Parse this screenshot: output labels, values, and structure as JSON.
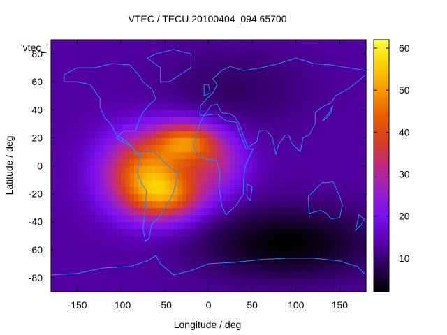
{
  "chart_data": {
    "type": "heatmap",
    "title": "VTEC / TECU 20100404_094.65700",
    "xlabel": "Longitude / deg",
    "ylabel": "Latitude / deg",
    "legend_key": "'vtec_'",
    "xlim": [
      -180,
      180
    ],
    "ylim": [
      -90,
      90
    ],
    "xticks": [
      -150,
      -100,
      -50,
      0,
      50,
      100,
      150
    ],
    "yticks": [
      -80,
      -60,
      -40,
      -20,
      0,
      20,
      40,
      60,
      80
    ],
    "colorbar": {
      "range": [
        2,
        62
      ],
      "ticks": [
        10,
        20,
        30,
        40,
        50,
        60
      ],
      "palette": [
        "#000000",
        "#2a0055",
        "#5a00b0",
        "#7a10f0",
        "#9a20c8",
        "#c02a80",
        "#d84020",
        "#e86000",
        "#f59a00",
        "#fbd000",
        "#ffff40"
      ]
    },
    "background_vtec": 13,
    "anomaly_components": [
      {
        "lon": -70,
        "lat": -5,
        "amp": 34,
        "sigma_lon": 35,
        "sigma_lat": 20
      },
      {
        "lon": -25,
        "lat": 18,
        "amp": 26,
        "sigma_lon": 25,
        "sigma_lat": 10
      },
      {
        "lon": -45,
        "lat": -22,
        "amp": 20,
        "sigma_lon": 30,
        "sigma_lat": 12
      },
      {
        "lon": 10,
        "lat": 2,
        "amp": 14,
        "sigma_lon": 25,
        "sigma_lat": 15
      },
      {
        "lon": 90,
        "lat": -55,
        "amp": -11,
        "sigma_lon": 70,
        "sigma_lat": 18
      },
      {
        "lon": 30,
        "lat": 55,
        "amp": -4,
        "sigma_lon": 60,
        "sigma_lat": 20
      }
    ],
    "coastlines": [
      {
        "name": "north-america",
        "points": [
          [
            -165,
            65
          ],
          [
            -150,
            70
          ],
          [
            -130,
            70
          ],
          [
            -110,
            73
          ],
          [
            -90,
            72
          ],
          [
            -80,
            65
          ],
          [
            -75,
            60
          ],
          [
            -65,
            55
          ],
          [
            -60,
            48
          ],
          [
            -67,
            44
          ],
          [
            -75,
            38
          ],
          [
            -81,
            30
          ],
          [
            -83,
            25
          ],
          [
            -97,
            25
          ],
          [
            -105,
            20
          ],
          [
            -95,
            16
          ],
          [
            -88,
            14
          ],
          [
            -83,
            9
          ],
          [
            -78,
            8
          ],
          [
            -85,
            12
          ],
          [
            -95,
            18
          ],
          [
            -105,
            22
          ],
          [
            -112,
            30
          ],
          [
            -118,
            34
          ],
          [
            -124,
            42
          ],
          [
            -124,
            48
          ],
          [
            -135,
            58
          ],
          [
            -150,
            60
          ],
          [
            -165,
            60
          ],
          [
            -165,
            65
          ]
        ]
      },
      {
        "name": "greenland",
        "points": [
          [
            -55,
            60
          ],
          [
            -45,
            60
          ],
          [
            -20,
            70
          ],
          [
            -20,
            80
          ],
          [
            -40,
            83
          ],
          [
            -60,
            80
          ],
          [
            -70,
            77
          ],
          [
            -55,
            70
          ],
          [
            -55,
            60
          ]
        ]
      },
      {
        "name": "south-america",
        "points": [
          [
            -78,
            8
          ],
          [
            -72,
            12
          ],
          [
            -62,
            10
          ],
          [
            -50,
            2
          ],
          [
            -35,
            -5
          ],
          [
            -38,
            -15
          ],
          [
            -42,
            -22
          ],
          [
            -48,
            -28
          ],
          [
            -58,
            -38
          ],
          [
            -65,
            -42
          ],
          [
            -68,
            -52
          ],
          [
            -72,
            -54
          ],
          [
            -75,
            -45
          ],
          [
            -72,
            -30
          ],
          [
            -71,
            -18
          ],
          [
            -77,
            -12
          ],
          [
            -81,
            -5
          ],
          [
            -80,
            0
          ],
          [
            -78,
            8
          ]
        ]
      },
      {
        "name": "europe-asia",
        "points": [
          [
            -10,
            36
          ],
          [
            -9,
            43
          ],
          [
            -2,
            48
          ],
          [
            5,
            52
          ],
          [
            10,
            58
          ],
          [
            5,
            62
          ],
          [
            15,
            68
          ],
          [
            25,
            71
          ],
          [
            40,
            68
          ],
          [
            60,
            70
          ],
          [
            80,
            73
          ],
          [
            100,
            77
          ],
          [
            120,
            73
          ],
          [
            140,
            72
          ],
          [
            160,
            70
          ],
          [
            180,
            68
          ],
          [
            180,
            65
          ],
          [
            170,
            60
          ],
          [
            160,
            55
          ],
          [
            145,
            50
          ],
          [
            140,
            45
          ],
          [
            130,
            42
          ],
          [
            122,
            38
          ],
          [
            122,
            30
          ],
          [
            115,
            22
          ],
          [
            108,
            20
          ],
          [
            105,
            10
          ],
          [
            100,
            13
          ],
          [
            95,
            16
          ],
          [
            92,
            22
          ],
          [
            88,
            22
          ],
          [
            80,
            15
          ],
          [
            77,
            8
          ],
          [
            73,
            20
          ],
          [
            67,
            25
          ],
          [
            58,
            25
          ],
          [
            55,
            17
          ],
          [
            45,
            13
          ],
          [
            35,
            30
          ],
          [
            30,
            35
          ],
          [
            25,
            37
          ],
          [
            15,
            38
          ],
          [
            10,
            44
          ],
          [
            3,
            43
          ],
          [
            -5,
            36
          ],
          [
            -10,
            36
          ]
        ]
      },
      {
        "name": "africa",
        "points": [
          [
            -17,
            15
          ],
          [
            -10,
            30
          ],
          [
            -5,
            36
          ],
          [
            10,
            37
          ],
          [
            20,
            32
          ],
          [
            32,
            31
          ],
          [
            35,
            25
          ],
          [
            43,
            12
          ],
          [
            51,
            12
          ],
          [
            42,
            0
          ],
          [
            40,
            -10
          ],
          [
            40,
            -20
          ],
          [
            32,
            -28
          ],
          [
            20,
            -35
          ],
          [
            15,
            -28
          ],
          [
            12,
            -15
          ],
          [
            13,
            -5
          ],
          [
            9,
            4
          ],
          [
            -5,
            5
          ],
          [
            -15,
            10
          ],
          [
            -17,
            15
          ]
        ]
      },
      {
        "name": "madagascar",
        "points": [
          [
            44,
            -13
          ],
          [
            50,
            -15
          ],
          [
            48,
            -25
          ],
          [
            44,
            -22
          ],
          [
            44,
            -13
          ]
        ]
      },
      {
        "name": "australia",
        "points": [
          [
            114,
            -22
          ],
          [
            122,
            -17
          ],
          [
            130,
            -12
          ],
          [
            137,
            -12
          ],
          [
            142,
            -11
          ],
          [
            145,
            -15
          ],
          [
            150,
            -22
          ],
          [
            153,
            -28
          ],
          [
            150,
            -37
          ],
          [
            140,
            -38
          ],
          [
            135,
            -34
          ],
          [
            128,
            -32
          ],
          [
            115,
            -34
          ],
          [
            114,
            -22
          ]
        ]
      },
      {
        "name": "new-zealand",
        "points": [
          [
            172,
            -35
          ],
          [
            178,
            -38
          ],
          [
            175,
            -42
          ],
          [
            168,
            -46
          ],
          [
            172,
            -35
          ]
        ]
      },
      {
        "name": "uk",
        "points": [
          [
            -5,
            50
          ],
          [
            2,
            52
          ],
          [
            0,
            58
          ],
          [
            -5,
            58
          ],
          [
            -5,
            50
          ]
        ]
      },
      {
        "name": "japan",
        "points": [
          [
            130,
            32
          ],
          [
            135,
            34
          ],
          [
            140,
            38
          ],
          [
            142,
            43
          ],
          [
            138,
            38
          ],
          [
            130,
            32
          ]
        ]
      },
      {
        "name": "antarctica",
        "points": [
          [
            -180,
            -78
          ],
          [
            -150,
            -77
          ],
          [
            -120,
            -73
          ],
          [
            -90,
            -72
          ],
          [
            -70,
            -68
          ],
          [
            -60,
            -64
          ],
          [
            -55,
            -70
          ],
          [
            -40,
            -78
          ],
          [
            -20,
            -75
          ],
          [
            0,
            -70
          ],
          [
            30,
            -69
          ],
          [
            60,
            -67
          ],
          [
            90,
            -66
          ],
          [
            120,
            -66
          ],
          [
            150,
            -68
          ],
          [
            170,
            -72
          ],
          [
            180,
            -78
          ]
        ]
      }
    ]
  }
}
